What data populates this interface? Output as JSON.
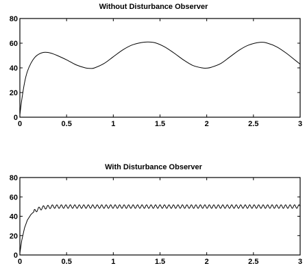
{
  "chart_data": [
    {
      "type": "line",
      "title": "Without Disturbance Observer",
      "xlabel": "",
      "ylabel": "",
      "xlim": [
        0,
        3
      ],
      "ylim": [
        0,
        80
      ],
      "x_ticks": [
        0,
        0.5,
        1,
        1.5,
        2,
        2.5,
        3
      ],
      "y_ticks": [
        0,
        20,
        40,
        60,
        80
      ],
      "x_tick_labels": [
        "0",
        "0.5",
        "1",
        "1.5",
        "2",
        "2.5",
        "3"
      ],
      "y_tick_labels": [
        "0",
        "20",
        "40",
        "60",
        "80"
      ],
      "grid": false,
      "line_color": "#000000",
      "series": [
        {
          "x": [
            0,
            0.02,
            0.05,
            0.08,
            0.12,
            0.16,
            0.2,
            0.25,
            0.3,
            0.35,
            0.4,
            0.5,
            0.6,
            0.7,
            0.76,
            0.8,
            0.9,
            1.0,
            1.1,
            1.2,
            1.3,
            1.37,
            1.45,
            1.55,
            1.65,
            1.75,
            1.85,
            1.95,
            2.0,
            2.05,
            2.15,
            2.25,
            2.35,
            2.45,
            2.57,
            2.65,
            2.75,
            2.85,
            2.95,
            3.0
          ],
          "y": [
            2,
            14,
            28,
            37,
            44,
            48.5,
            51,
            52.5,
            52.5,
            51.5,
            50,
            46.5,
            42.5,
            40,
            39.5,
            40,
            43.5,
            49,
            54.5,
            58.5,
            60.5,
            61,
            60.3,
            57,
            52,
            46.5,
            42,
            40,
            39.8,
            40.5,
            43.5,
            49,
            54.5,
            58.5,
            60.7,
            60,
            57,
            52,
            46,
            43
          ]
        }
      ]
    },
    {
      "type": "line",
      "title": "With Disturbance Observer",
      "xlabel": "",
      "ylabel": "",
      "xlim": [
        0,
        3
      ],
      "ylim": [
        0,
        80
      ],
      "x_ticks": [
        0,
        0.5,
        1,
        1.5,
        2,
        2.5,
        3
      ],
      "y_ticks": [
        0,
        20,
        40,
        60,
        80
      ],
      "x_tick_labels": [
        "0",
        "0.5",
        "1",
        "1.5",
        "2",
        "2.5",
        "3"
      ],
      "y_tick_labels": [
        "0",
        "20",
        "40",
        "60",
        "80"
      ],
      "grid": false,
      "line_color": "#000000",
      "series": [
        {
          "x": [
            0,
            0.02,
            0.05,
            0.08,
            0.12,
            0.16,
            0.2,
            0.25,
            0.3,
            0.35,
            0.4,
            0.5,
            0.75,
            1.0,
            1.25,
            1.5,
            1.75,
            2.0,
            2.25,
            2.5,
            2.75,
            3.0
          ],
          "y": [
            2,
            15,
            28,
            36,
            42,
            45.5,
            47.5,
            49,
            49.5,
            50,
            50,
            50,
            50,
            50,
            50,
            50,
            50,
            50,
            50,
            50,
            50,
            50
          ],
          "ripple_amplitude": 1.8,
          "ripple_period": 0.048
        }
      ]
    }
  ]
}
